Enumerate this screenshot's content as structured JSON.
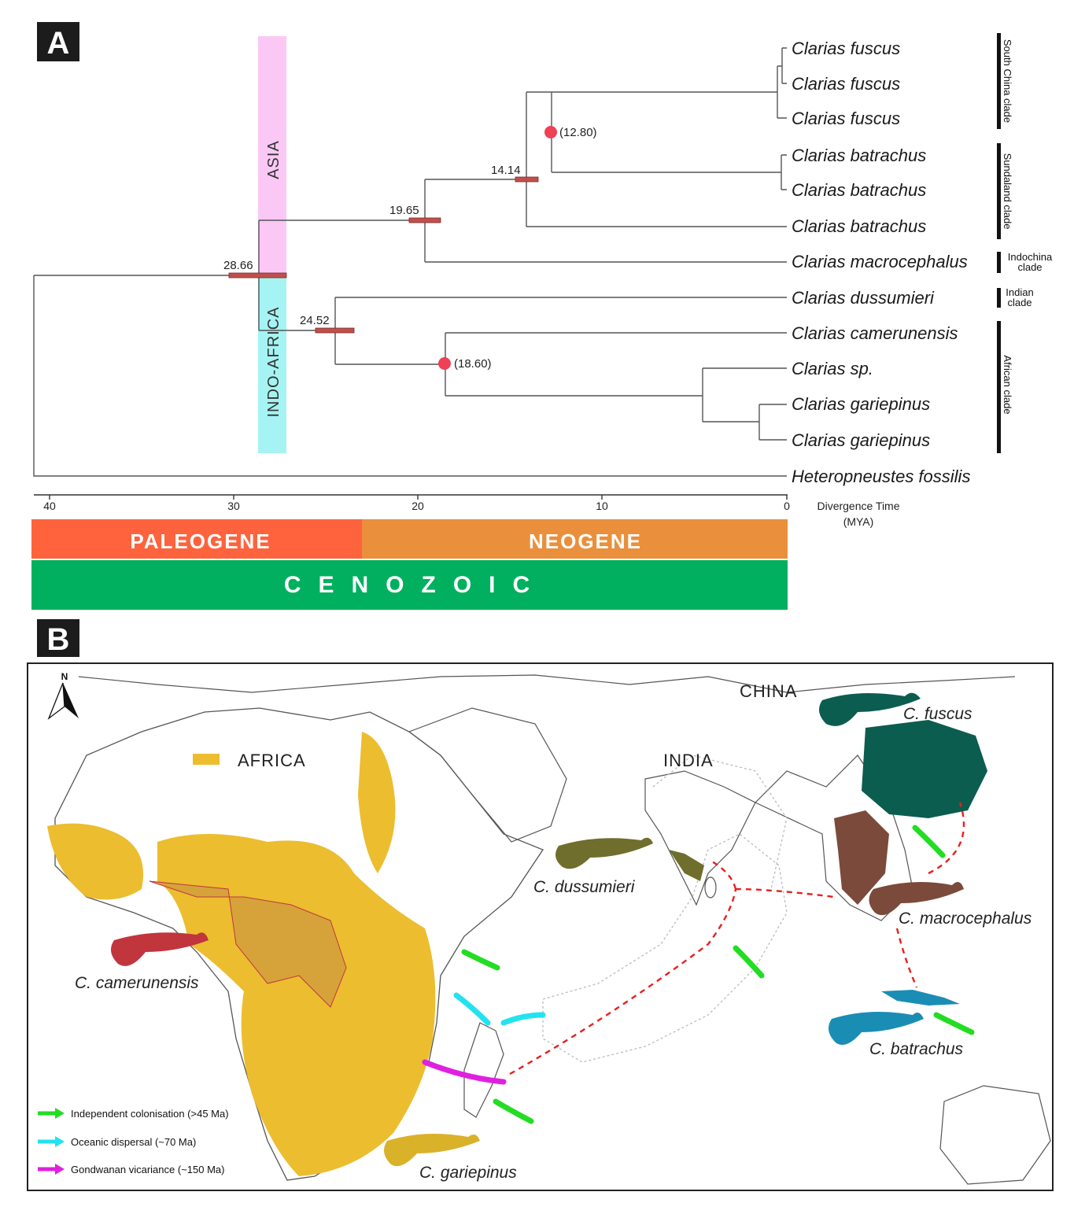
{
  "panel_a": {
    "label": "A",
    "regions": {
      "asia": "ASIA",
      "indo_africa": "INDO-AFRICA"
    },
    "taxa": [
      "Clarias fuscus",
      "Clarias fuscus",
      "Clarias fuscus",
      "Clarias batrachus",
      "Clarias batrachus",
      "Clarias batrachus",
      "Clarias macrocephalus",
      "Clarias dussumieri",
      "Clarias camerunensis",
      "Clarias sp.",
      "Clarias gariepinus",
      "Clarias gariepinus",
      "Heteropneustes fossilis"
    ],
    "nodes": {
      "n2866": "28.66",
      "n2452": "24.52",
      "n1965": "19.65",
      "n1414": "14.14",
      "n1280": "(12.80)",
      "n1860": "(18.60)"
    },
    "axis": {
      "ticks": [
        "40",
        "30",
        "20",
        "10",
        "0"
      ],
      "label_line1": "Divergence Time",
      "label_line2": "(MYA)"
    },
    "clades": {
      "south_china": "South China clade",
      "sundaland": "Sundaland clade",
      "indochina_1": "Indochina",
      "indochina_2": "clade",
      "indian_1": "Indian",
      "indian_2": "clade",
      "african": "African clade"
    },
    "periods": {
      "paleogene": "PALEOGENE",
      "neogene": "NEOGENE",
      "era": "CENOZOIC"
    },
    "colors": {
      "asia": "#fbc8f5",
      "indo_africa": "#a6f3f3",
      "paleogene": "#fe633d",
      "neogene": "#ea8f3b",
      "cenozoic": "#00b05f",
      "node_bar": "#c0504d",
      "calibration": "#ef4055"
    }
  },
  "panel_b": {
    "label": "B",
    "north": "N",
    "places": {
      "africa": "AFRICA",
      "india": "INDIA",
      "china": "CHINA"
    },
    "species": {
      "fuscus": "C. fuscus",
      "dussumieri": "C. dussumieri",
      "macrocephalus": "C. macrocephalus",
      "camerunensis": "C. camerunensis",
      "batrachus": "C. batrachus",
      "gariepinus": "C. gariepinus"
    },
    "legend": [
      {
        "text": "Independent colonisation (>45 Ma)",
        "color": "#22dd22"
      },
      {
        "text": "Oceanic dispersal (~70 Ma)",
        "color": "#22e3ef"
      },
      {
        "text": "Gondwanan vicariance (~150 Ma)",
        "color": "#e020e0"
      }
    ],
    "colors": {
      "gariepinus_range": "#ecbd2f",
      "fuscus_range": "#0b5d4f",
      "macrocephalus_range": "#7b4a3a",
      "batrachus_range": "#1a8db5",
      "dussumieri_range": "#6f6e2c",
      "camerunensis": "#c1353d",
      "dispersal_route": "#e82020"
    }
  }
}
